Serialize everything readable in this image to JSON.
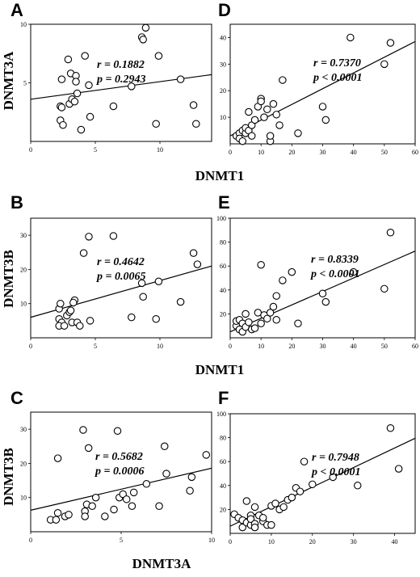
{
  "figure": {
    "axis_titles": {
      "row1_y": "DNMT3A",
      "row2_y": "DNMT3B",
      "row3_y": "DNMT3B",
      "row1_x": "DNMT1",
      "row2_x": "DNMT1",
      "row3_x": "DNMT3A"
    }
  },
  "chart_data": [
    {
      "panel": "A",
      "type": "scatter",
      "xlim": [
        0,
        14
      ],
      "ylim": [
        0,
        10
      ],
      "xticks": [
        "0",
        "5",
        "10"
      ],
      "xtick_values": [
        0,
        5,
        10
      ],
      "yticks": [
        "5",
        "10"
      ],
      "ytick_values": [
        5,
        10
      ],
      "r_text": "r = 0.1882",
      "p_text": "p = 0.2943",
      "fit": [
        [
          0,
          3.6
        ],
        [
          14,
          5.7
        ]
      ],
      "points": [
        [
          2.3,
          3.0
        ],
        [
          2.4,
          5.3
        ],
        [
          2.3,
          1.8
        ],
        [
          2.5,
          1.4
        ],
        [
          2.4,
          2.9
        ],
        [
          2.9,
          7.0
        ],
        [
          3.0,
          3.2
        ],
        [
          3.1,
          5.8
        ],
        [
          3.2,
          3.6
        ],
        [
          3.4,
          3.4
        ],
        [
          3.5,
          5.6
        ],
        [
          3.5,
          5.1
        ],
        [
          3.6,
          4.1
        ],
        [
          3.9,
          1.0
        ],
        [
          4.2,
          7.3
        ],
        [
          4.5,
          4.8
        ],
        [
          4.6,
          2.1
        ],
        [
          6.4,
          3.0
        ],
        [
          7.8,
          4.7
        ],
        [
          8.6,
          8.9
        ],
        [
          8.9,
          9.7
        ],
        [
          8.7,
          8.7
        ],
        [
          9.7,
          1.5
        ],
        [
          9.9,
          7.3
        ],
        [
          11.6,
          5.3
        ],
        [
          12.6,
          3.1
        ],
        [
          12.8,
          1.5
        ]
      ]
    },
    {
      "panel": "B",
      "type": "scatter",
      "xlim": [
        0,
        14
      ],
      "ylim": [
        0,
        35
      ],
      "xticks": [
        "0",
        "5",
        "10"
      ],
      "xtick_values": [
        0,
        5,
        10
      ],
      "yticks": [
        "10",
        "20",
        "30"
      ],
      "ytick_values": [
        10,
        20,
        30
      ],
      "r_text": "r = 0.4642",
      "p_text": "p = 0.0065",
      "fit": [
        [
          0,
          6.0
        ],
        [
          14,
          21.0
        ]
      ],
      "points": [
        [
          2.2,
          8.5
        ],
        [
          2.3,
          10.0
        ],
        [
          2.2,
          5.5
        ],
        [
          2.4,
          4.5
        ],
        [
          2.2,
          3.5
        ],
        [
          2.6,
          3.5
        ],
        [
          2.8,
          6.5
        ],
        [
          3.0,
          7.5
        ],
        [
          3.1,
          8.0
        ],
        [
          3.2,
          4.5
        ],
        [
          3.4,
          11.0
        ],
        [
          3.3,
          10.3
        ],
        [
          3.6,
          4.5
        ],
        [
          3.8,
          3.5
        ],
        [
          4.1,
          24.8
        ],
        [
          4.5,
          29.6
        ],
        [
          4.6,
          5.0
        ],
        [
          6.4,
          29.8
        ],
        [
          7.8,
          6.0
        ],
        [
          8.6,
          16.0
        ],
        [
          8.7,
          12.0
        ],
        [
          9.7,
          5.5
        ],
        [
          9.9,
          16.5
        ],
        [
          11.6,
          10.5
        ],
        [
          12.6,
          24.8
        ],
        [
          12.9,
          21.5
        ]
      ]
    },
    {
      "panel": "C",
      "type": "scatter",
      "xlim": [
        0,
        10
      ],
      "ylim": [
        0,
        35
      ],
      "xticks": [
        "0",
        "5",
        "10"
      ],
      "xtick_values": [
        0,
        5,
        10
      ],
      "yticks": [
        "10",
        "20",
        "30"
      ],
      "ytick_values": [
        10,
        20,
        30
      ],
      "r_text": "r = 0.5682",
      "p_text": "p = 0.0006",
      "fit": [
        [
          0,
          6.3
        ],
        [
          10,
          18.6
        ]
      ],
      "points": [
        [
          1.1,
          3.5
        ],
        [
          1.4,
          3.5
        ],
        [
          1.5,
          5.5
        ],
        [
          1.5,
          21.5
        ],
        [
          1.9,
          4.5
        ],
        [
          2.1,
          5.0
        ],
        [
          2.9,
          29.8
        ],
        [
          3.0,
          6.0
        ],
        [
          3.0,
          4.5
        ],
        [
          3.1,
          8.0
        ],
        [
          3.2,
          24.5
        ],
        [
          3.4,
          7.5
        ],
        [
          3.6,
          10.0
        ],
        [
          4.1,
          4.5
        ],
        [
          4.6,
          6.5
        ],
        [
          4.8,
          29.5
        ],
        [
          4.9,
          10.0
        ],
        [
          5.1,
          11.0
        ],
        [
          5.3,
          9.5
        ],
        [
          5.6,
          7.5
        ],
        [
          5.7,
          11.5
        ],
        [
          6.4,
          14.0
        ],
        [
          7.1,
          7.5
        ],
        [
          7.4,
          25.0
        ],
        [
          7.5,
          17.0
        ],
        [
          8.8,
          12.0
        ],
        [
          8.9,
          16.0
        ],
        [
          9.7,
          22.5
        ]
      ]
    },
    {
      "panel": "D",
      "type": "scatter",
      "xlim": [
        0,
        60
      ],
      "ylim": [
        0,
        45
      ],
      "xticks": [
        "0",
        "10",
        "20",
        "30",
        "40",
        "50",
        "60"
      ],
      "xtick_values": [
        0,
        10,
        20,
        30,
        40,
        50,
        60
      ],
      "yticks": [
        "10",
        "20",
        "30",
        "40"
      ],
      "ytick_values": [
        10,
        20,
        30,
        40
      ],
      "r_text": "r = 0.7370",
      "p_text": "p < 0.0001",
      "fit": [
        [
          0,
          3.0
        ],
        [
          60,
          38.5
        ]
      ],
      "points": [
        [
          2,
          3
        ],
        [
          3,
          4
        ],
        [
          3,
          2
        ],
        [
          4,
          5
        ],
        [
          4,
          1
        ],
        [
          5,
          4
        ],
        [
          5,
          6
        ],
        [
          6,
          5
        ],
        [
          6,
          12
        ],
        [
          7,
          3
        ],
        [
          7,
          7
        ],
        [
          8,
          9
        ],
        [
          9,
          14
        ],
        [
          10,
          17
        ],
        [
          10,
          16
        ],
        [
          11,
          10
        ],
        [
          12,
          13
        ],
        [
          13,
          1
        ],
        [
          13,
          3
        ],
        [
          14,
          15
        ],
        [
          15,
          11
        ],
        [
          16,
          7
        ],
        [
          17,
          24
        ],
        [
          22,
          4
        ],
        [
          30,
          14
        ],
        [
          31,
          9
        ],
        [
          39,
          40
        ],
        [
          50,
          30
        ],
        [
          52,
          38
        ]
      ]
    },
    {
      "panel": "E",
      "type": "scatter",
      "xlim": [
        0,
        60
      ],
      "ylim": [
        0,
        100
      ],
      "xticks": [
        "0",
        "10",
        "20",
        "30",
        "40",
        "50",
        "60"
      ],
      "xtick_values": [
        0,
        10,
        20,
        30,
        40,
        50,
        60
      ],
      "yticks": [
        "20",
        "40",
        "60",
        "80",
        "100"
      ],
      "ytick_values": [
        20,
        40,
        60,
        80,
        100
      ],
      "r_text": "r = 0.8339",
      "p_text": "p < 0.0001",
      "fit": [
        [
          0,
          5.0
        ],
        [
          60,
          72.5
        ]
      ],
      "points": [
        [
          2,
          10
        ],
        [
          2,
          14
        ],
        [
          3,
          7
        ],
        [
          3,
          15
        ],
        [
          4,
          12
        ],
        [
          4,
          5
        ],
        [
          5,
          9
        ],
        [
          5,
          20
        ],
        [
          6,
          13
        ],
        [
          7,
          7
        ],
        [
          8,
          8
        ],
        [
          9,
          21
        ],
        [
          10,
          12
        ],
        [
          10,
          61
        ],
        [
          11,
          19
        ],
        [
          12,
          16
        ],
        [
          13,
          21
        ],
        [
          14,
          26
        ],
        [
          15,
          35
        ],
        [
          15,
          15
        ],
        [
          17,
          48
        ],
        [
          20,
          55
        ],
        [
          22,
          12
        ],
        [
          30,
          37
        ],
        [
          31,
          30
        ],
        [
          40,
          55
        ],
        [
          50,
          41
        ],
        [
          52,
          88
        ]
      ]
    },
    {
      "panel": "F",
      "type": "scatter",
      "xlim": [
        0,
        45
      ],
      "ylim": [
        0,
        100
      ],
      "xticks": [
        "0",
        "10",
        "20",
        "30",
        "40"
      ],
      "xtick_values": [
        0,
        10,
        20,
        30,
        40
      ],
      "yticks": [
        "20",
        "40",
        "60",
        "80",
        "100"
      ],
      "ytick_values": [
        20,
        40,
        60,
        80,
        100
      ],
      "r_text": "r = 0.7948",
      "p_text": "p < 0.0001",
      "fit": [
        [
          0,
          6.0
        ],
        [
          45,
          79.5
        ]
      ],
      "points": [
        [
          1,
          16
        ],
        [
          2,
          13
        ],
        [
          3,
          11
        ],
        [
          3,
          5
        ],
        [
          4,
          27
        ],
        [
          4,
          9
        ],
        [
          5,
          15
        ],
        [
          5,
          7
        ],
        [
          5,
          12
        ],
        [
          6,
          8
        ],
        [
          6,
          22
        ],
        [
          6,
          5
        ],
        [
          7,
          15
        ],
        [
          8,
          10
        ],
        [
          8,
          13
        ],
        [
          9,
          7
        ],
        [
          10,
          23
        ],
        [
          10,
          7
        ],
        [
          11,
          25
        ],
        [
          12,
          20
        ],
        [
          13,
          22
        ],
        [
          14,
          28
        ],
        [
          15,
          30
        ],
        [
          16,
          38
        ],
        [
          17,
          35
        ],
        [
          18,
          60
        ],
        [
          20,
          41
        ],
        [
          25,
          47
        ],
        [
          31,
          40
        ],
        [
          39,
          88
        ],
        [
          41,
          54
        ]
      ]
    }
  ]
}
